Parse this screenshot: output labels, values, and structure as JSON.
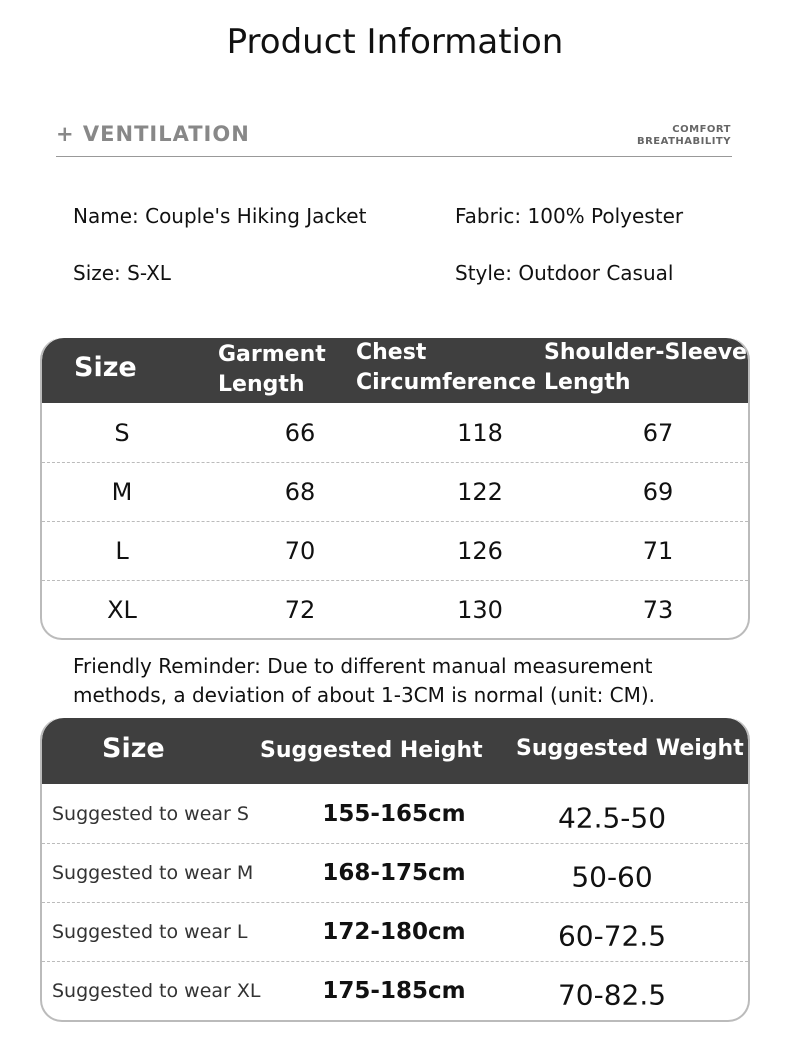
{
  "title": "Product Information",
  "banner": {
    "left": "+ VENTILATION",
    "right_line1": "COMFORT",
    "right_line2": "BREATHABILITY"
  },
  "info": {
    "name": "Name: Couple's Hiking Jacket",
    "fabric": "Fabric: 100% Polyester",
    "size": "Size: S-XL",
    "style": "Style: Outdoor Casual"
  },
  "size_table": {
    "headers": {
      "size": "Size",
      "garment_1": "Garment",
      "garment_2": "Length",
      "chest_1": "Chest",
      "chest_2": "Circumference",
      "shoulder_1": "Shoulder-Sleeve",
      "shoulder_2": "Length"
    },
    "rows": [
      [
        "S",
        "66",
        "118",
        "67"
      ],
      [
        "M",
        "68",
        "122",
        "69"
      ],
      [
        "L",
        "70",
        "126",
        "71"
      ],
      [
        "XL",
        "72",
        "130",
        "73"
      ]
    ]
  },
  "reminder": {
    "line1": "Friendly Reminder: Due to different manual measurement",
    "line2": "methods, a deviation of about 1-3CM is normal (unit: CM)."
  },
  "fit_table": {
    "headers": {
      "size": "Size",
      "height": "Suggested Height",
      "weight": "Suggested Weight"
    },
    "rows": [
      [
        "Suggested to wear S",
        "155-165cm",
        "42.5-50"
      ],
      [
        "Suggested to wear M",
        "168-175cm",
        "50-60"
      ],
      [
        "Suggested to wear L",
        "172-180cm",
        "60-72.5"
      ],
      [
        "Suggested to wear XL",
        "175-185cm",
        "70-82.5"
      ]
    ]
  },
  "colors": {
    "header_bg": "#3f3f3f",
    "banner_text": "#888888"
  }
}
